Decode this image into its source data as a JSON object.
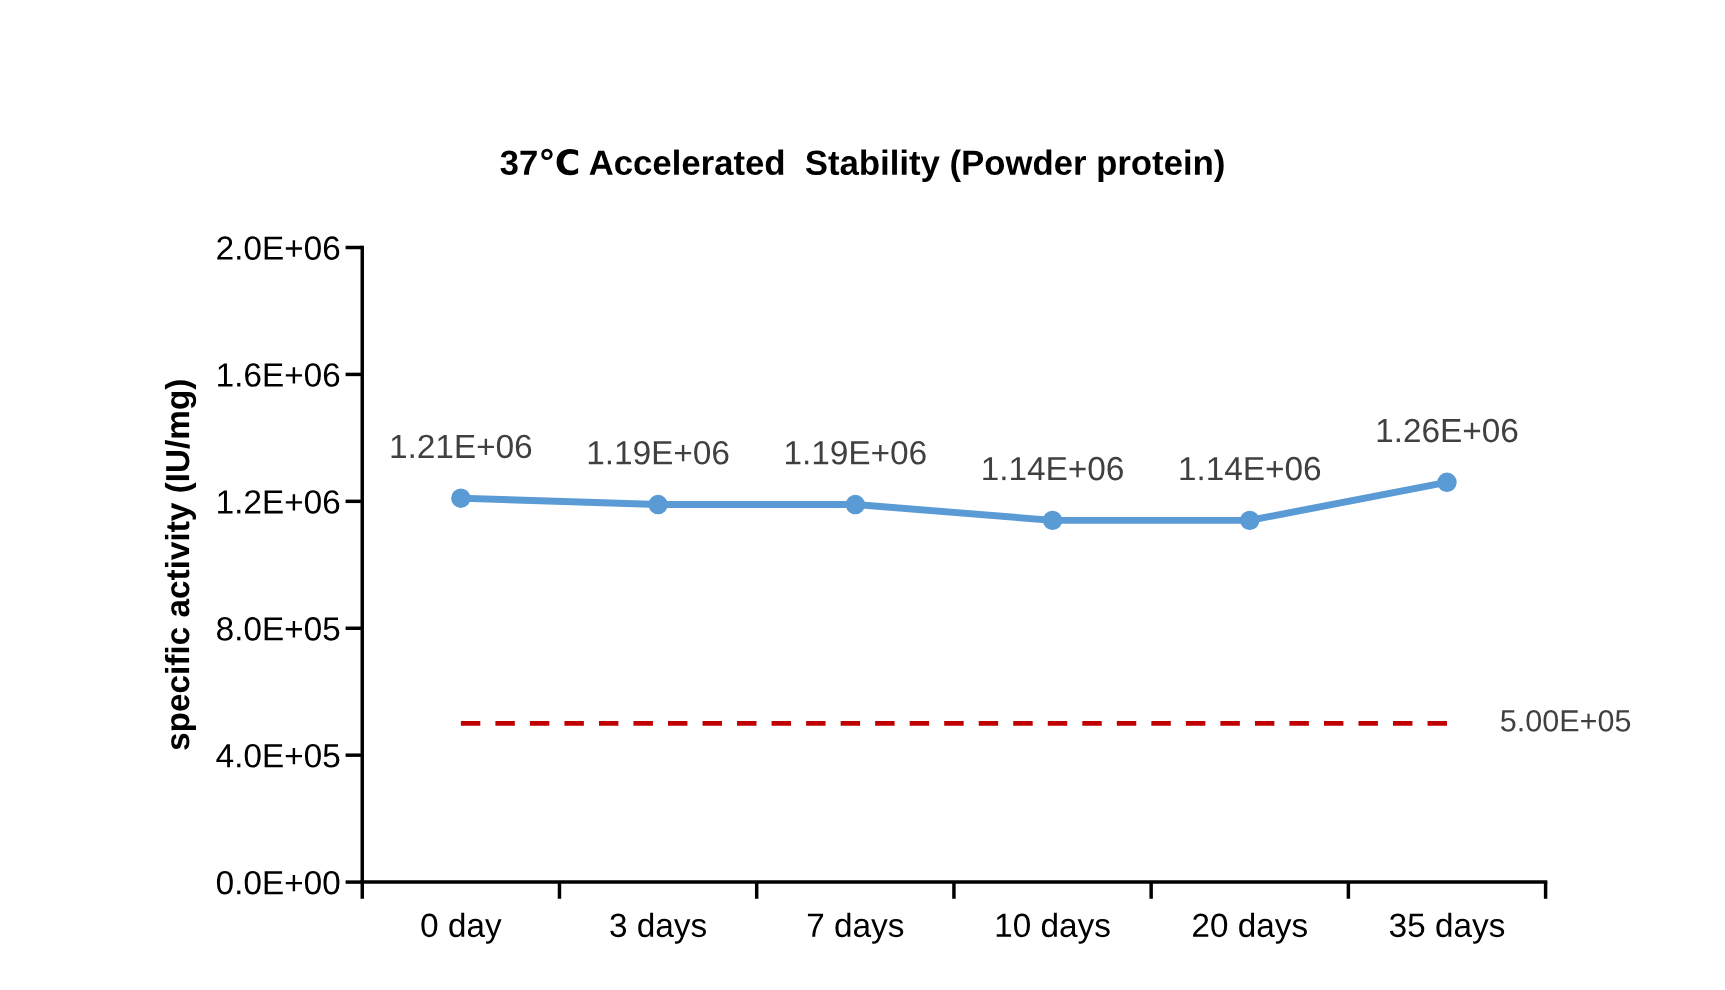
{
  "chart_data": {
    "type": "line",
    "title": "37℃ Accelerated  Stability (Powder protein)",
    "ylabel": "specific activity (IU/mg)",
    "categories": [
      "0 day",
      "3 days",
      "7 days",
      "10 days",
      "20 days",
      "35 days"
    ],
    "series": [
      {
        "color": "#5b9bd5",
        "values": [
          1210000,
          1190000,
          1190000,
          1140000,
          1140000,
          1260000
        ],
        "marker": "circle",
        "line_style": "solid",
        "value_labels": [
          "1.21E+06",
          "1.19E+06",
          "1.19E+06",
          "1.14E+06",
          "1.14E+06",
          "1.26E+06"
        ]
      },
      {
        "color": "#c00000",
        "values": [
          500000,
          500000,
          500000,
          500000,
          500000,
          500000
        ],
        "marker": "none",
        "line_style": "dashed",
        "value_labels": [
          null,
          null,
          null,
          null,
          null,
          "5.00E+05"
        ]
      }
    ],
    "ylim": [
      0,
      2000000
    ],
    "yticks": [
      {
        "value": 0,
        "label": "0.0E+00"
      },
      {
        "value": 400000,
        "label": "4.0E+05"
      },
      {
        "value": 800000,
        "label": "8.0E+05"
      },
      {
        "value": 1200000,
        "label": "1.2E+06"
      },
      {
        "value": 1600000,
        "label": "1.6E+06"
      },
      {
        "value": 2000000,
        "label": "2.0E+06"
      }
    ],
    "grid": false,
    "legend": false
  }
}
